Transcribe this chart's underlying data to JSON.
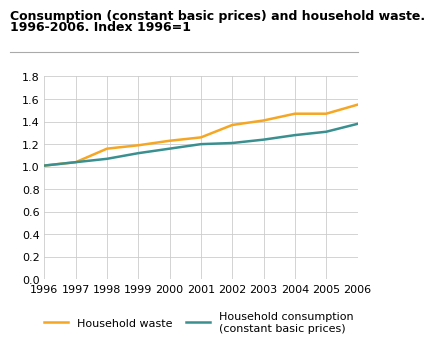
{
  "title_line1": "Consumption (constant basic prices) and household waste.",
  "title_line2": "1996-2006. Index 1996=1",
  "years": [
    1996,
    1997,
    1998,
    1999,
    2000,
    2001,
    2002,
    2003,
    2004,
    2005,
    2006
  ],
  "household_waste": [
    1.01,
    1.04,
    1.16,
    1.19,
    1.23,
    1.26,
    1.37,
    1.41,
    1.47,
    1.47,
    1.55
  ],
  "household_consumption": [
    1.01,
    1.04,
    1.07,
    1.12,
    1.16,
    1.2,
    1.21,
    1.24,
    1.28,
    1.31,
    1.38
  ],
  "waste_color": "#f5a623",
  "consumption_color": "#3a9090",
  "ylim": [
    0.0,
    1.8
  ],
  "yticks": [
    0.0,
    0.2,
    0.4,
    0.6,
    0.8,
    1.0,
    1.2,
    1.4,
    1.6,
    1.8
  ],
  "legend_waste": "Household waste",
  "legend_consumption": "Household consumption\n(constant basic prices)",
  "bg_color": "#ffffff",
  "grid_color": "#cccccc",
  "line_width": 1.8,
  "title_fontsize": 9.0,
  "tick_fontsize": 8.0,
  "legend_fontsize": 8.0
}
